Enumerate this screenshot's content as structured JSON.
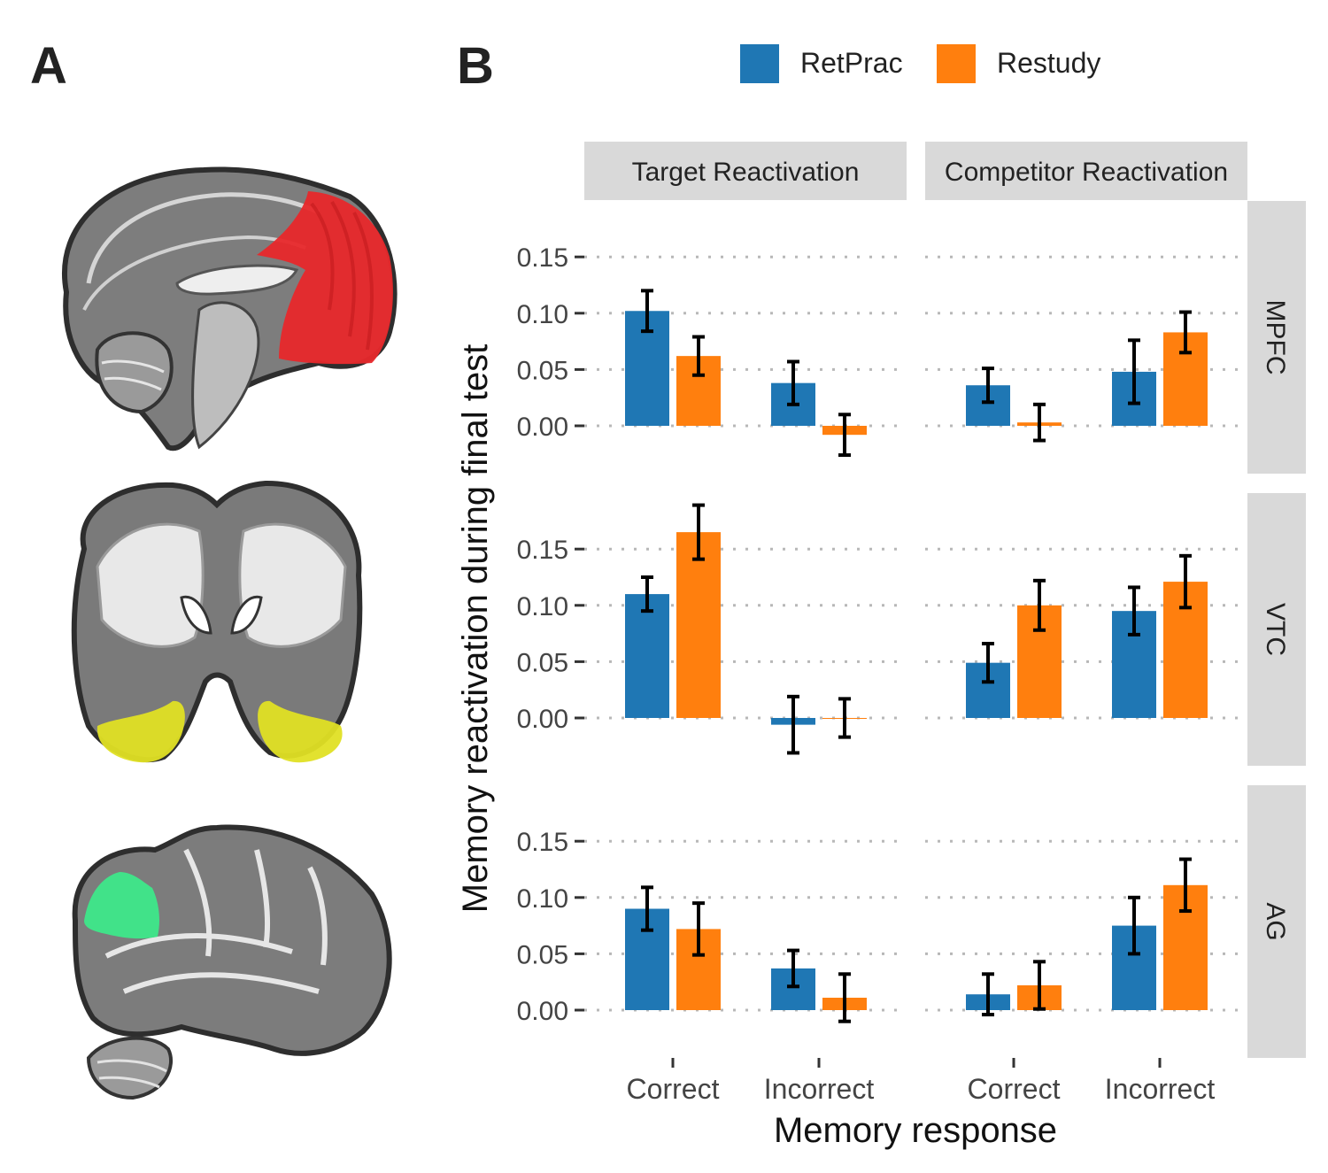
{
  "panel_a": {
    "label": "A",
    "regions": [
      {
        "name": "MPFC",
        "color": "#e8282b"
      },
      {
        "name": "VTC",
        "color": "#e0e024"
      },
      {
        "name": "AG",
        "color": "#3ee88a"
      }
    ]
  },
  "panel_b": {
    "label": "B"
  },
  "chart_data": {
    "type": "bar",
    "xlabel": "Memory response",
    "ylabel": "Memory reactivation during final test",
    "categories": [
      "Correct",
      "Incorrect"
    ],
    "legend": {
      "position": "top",
      "entries": [
        {
          "name": "RetPrac",
          "color": "#1f77b4"
        },
        {
          "name": "Restudy",
          "color": "#ff7f0e"
        }
      ]
    },
    "facet_cols": [
      "Target Reactivation",
      "Competitor Reactivation"
    ],
    "facet_rows": [
      "MPFC",
      "VTC",
      "AG"
    ],
    "yticks": [
      0.0,
      0.05,
      0.1,
      0.15
    ],
    "ytick_labels": [
      "0.00",
      "0.05",
      "0.10",
      "0.15"
    ],
    "ylim": [
      -0.035,
      0.2
    ],
    "grid": "dotted horizontal",
    "panels": [
      {
        "row": "MPFC",
        "col": "Target Reactivation",
        "series": [
          {
            "name": "RetPrac",
            "values": [
              0.102,
              0.038
            ],
            "errors": [
              0.018,
              0.019
            ]
          },
          {
            "name": "Restudy",
            "values": [
              0.062,
              -0.008
            ],
            "errors": [
              0.017,
              0.018
            ]
          }
        ]
      },
      {
        "row": "MPFC",
        "col": "Competitor Reactivation",
        "series": [
          {
            "name": "RetPrac",
            "values": [
              0.036,
              0.048
            ],
            "errors": [
              0.015,
              0.028
            ]
          },
          {
            "name": "Restudy",
            "values": [
              0.003,
              0.083
            ],
            "errors": [
              0.016,
              0.018
            ]
          }
        ]
      },
      {
        "row": "VTC",
        "col": "Target Reactivation",
        "series": [
          {
            "name": "RetPrac",
            "values": [
              0.11,
              -0.006
            ],
            "errors": [
              0.015,
              0.025
            ]
          },
          {
            "name": "Restudy",
            "values": [
              0.165,
              0.0
            ],
            "errors": [
              0.024,
              0.017
            ]
          }
        ]
      },
      {
        "row": "VTC",
        "col": "Competitor Reactivation",
        "series": [
          {
            "name": "RetPrac",
            "values": [
              0.049,
              0.095
            ],
            "errors": [
              0.017,
              0.021
            ]
          },
          {
            "name": "Restudy",
            "values": [
              0.1,
              0.121
            ],
            "errors": [
              0.022,
              0.023
            ]
          }
        ]
      },
      {
        "row": "AG",
        "col": "Target Reactivation",
        "series": [
          {
            "name": "RetPrac",
            "values": [
              0.09,
              0.037
            ],
            "errors": [
              0.019,
              0.016
            ]
          },
          {
            "name": "Restudy",
            "values": [
              0.072,
              0.011
            ],
            "errors": [
              0.023,
              0.021
            ]
          }
        ]
      },
      {
        "row": "AG",
        "col": "Competitor Reactivation",
        "series": [
          {
            "name": "RetPrac",
            "values": [
              0.014,
              0.075
            ],
            "errors": [
              0.018,
              0.025
            ]
          },
          {
            "name": "Restudy",
            "values": [
              0.022,
              0.111
            ],
            "errors": [
              0.021,
              0.023
            ]
          }
        ]
      }
    ]
  }
}
